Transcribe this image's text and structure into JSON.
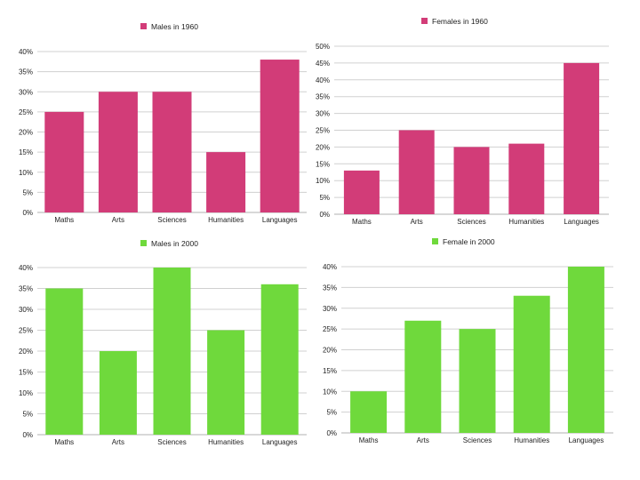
{
  "colors": {
    "males_1960": "#d23c78",
    "females_1960": "#d23c78",
    "males_2000": "#6fd93c",
    "females_2000": "#6fd93c",
    "gridline": "#d0d0d0",
    "axis": "#b0b0b0"
  },
  "chart_data": [
    {
      "type": "bar",
      "title": "",
      "xlabel": "",
      "ylabel": "",
      "legend": "Males in 1960",
      "legend_placement": "top",
      "grid": true,
      "categories": [
        "Maths",
        "Arts",
        "Sciences",
        "Humanities",
        "Languages"
      ],
      "values": [
        25,
        30,
        30,
        15,
        38
      ],
      "ylim": [
        0,
        40
      ],
      "yticks": [
        "0%",
        "5%",
        "10%",
        "15%",
        "20%",
        "25%",
        "30%",
        "35%",
        "40%"
      ]
    },
    {
      "type": "bar",
      "title": "",
      "xlabel": "",
      "ylabel": "",
      "legend": "Females in 1960",
      "legend_placement": "top",
      "grid": true,
      "categories": [
        "Maths",
        "Arts",
        "Sciences",
        "Humanities",
        "Languages"
      ],
      "values": [
        13,
        25,
        20,
        21,
        45
      ],
      "ylim": [
        0,
        50
      ],
      "yticks": [
        "0%",
        "5%",
        "10%",
        "15%",
        "20%",
        "25%",
        "30%",
        "35%",
        "40%",
        "45%",
        "50%"
      ]
    },
    {
      "type": "bar",
      "title": "",
      "xlabel": "",
      "ylabel": "",
      "legend": "Males in 2000",
      "legend_placement": "top",
      "grid": true,
      "categories": [
        "Maths",
        "Arts",
        "Sciences",
        "Humanities",
        "Languages"
      ],
      "values": [
        35,
        20,
        40,
        25,
        36
      ],
      "ylim": [
        0,
        40
      ],
      "yticks": [
        "0%",
        "5%",
        "10%",
        "15%",
        "20%",
        "25%",
        "30%",
        "35%",
        "40%"
      ]
    },
    {
      "type": "bar",
      "title": "",
      "xlabel": "",
      "ylabel": "",
      "legend": "Female in 2000",
      "legend_placement": "top",
      "grid": true,
      "categories": [
        "Maths",
        "Arts",
        "Sciences",
        "Humanities",
        "Languages"
      ],
      "values": [
        10,
        27,
        25,
        33,
        40
      ],
      "ylim": [
        0,
        40
      ],
      "yticks": [
        "0%",
        "5%",
        "10%",
        "15%",
        "20%",
        "25%",
        "30%",
        "35%",
        "40%"
      ]
    }
  ]
}
